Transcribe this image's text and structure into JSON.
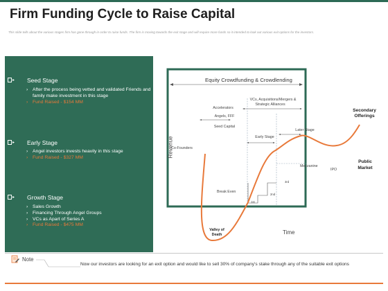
{
  "header": {
    "title": "Firm Funding Cycle to Raise Capital",
    "subtitle": "This slide tells about the various stages firm has gone through in order to raise funds. The firm is moving towards the exit stage and will require more funds so it intended to look out various exit options for the investors."
  },
  "stages": [
    {
      "name": "Seed Stage",
      "points": [
        "After the process being vetted and validated Friends and family make investment in this stage"
      ],
      "fund": "Fund Raised - $154 MM"
    },
    {
      "name": "Early Stage",
      "points": [
        "Angel investors invests heavily in this stage"
      ],
      "fund": "Fund Raised - $327 MM"
    },
    {
      "name": "Growth Stage",
      "points": [
        "Sales Growth",
        "Financing Through Angel Groups",
        "VCs as Apart of Series A"
      ],
      "fund": "Fund Raised - $475 MM"
    }
  ],
  "diagram": {
    "header": "Equity Crowdfunding & Crowdlending",
    "y_label": "Revenue",
    "x_label": "Time",
    "accelerators": "Accelerators",
    "angels": "Angels, FFF",
    "seed_capital": "Seed Capital",
    "vcs": "VCs, Acquisitions/Mergers &",
    "vcs2": "Strategic Alliances",
    "early_stage": "Early Stage",
    "later_stage": "Later Stage",
    "co_founders": "Co-Founders",
    "mezzanine": "Mezzanine",
    "ipo": "IPO",
    "break_even": "Break Even",
    "first": "1st",
    "second": "2nd",
    "third": "3rd",
    "valley1": "Valley of",
    "valley2": "Death",
    "secondary1": "Secondary",
    "secondary2": "Offerings",
    "public1": "Public",
    "public2": "Market"
  },
  "note": {
    "label": "Note",
    "text": "Now our investors are looking for an exit option and would like to sell 30% of company's stake through any of the suitable exit options"
  },
  "colors": {
    "panel": "#2f6c56",
    "accent": "#e8793a",
    "border": "#2d6a55"
  }
}
